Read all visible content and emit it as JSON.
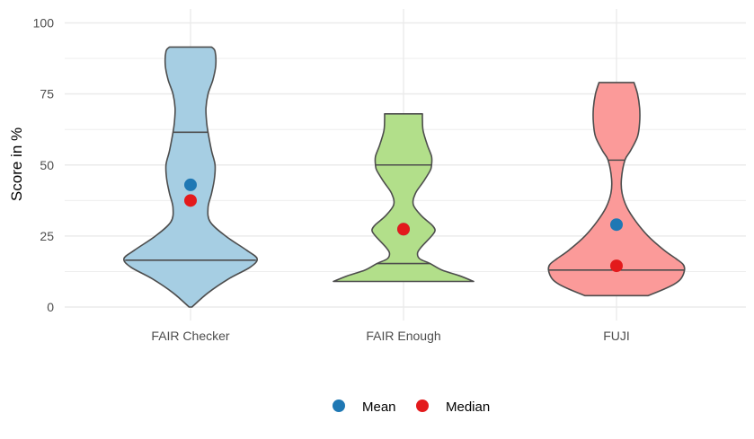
{
  "chart_data": {
    "type": "violin",
    "title": "",
    "xlabel": "",
    "ylabel": "Score in %",
    "ylim": [
      0,
      100
    ],
    "yticks": [
      0,
      25,
      50,
      75,
      100
    ],
    "grid": true,
    "legend_position": "bottom",
    "categories": [
      "FAIR Checker",
      "FAIR Enough",
      "FUJI"
    ],
    "colors": {
      "FAIR Checker": "#a6cee3",
      "FAIR Enough": "#b2df8a",
      "FUJI": "#fb9a99",
      "outline": "#4d4d4d",
      "grid": "#ebebeb"
    },
    "violins": [
      {
        "category": "FAIR Checker",
        "min": 0,
        "max": 91.5,
        "quantile_lines": [
          16.5,
          61.5
        ],
        "mean": 43,
        "median": 37.5,
        "density_profile": [
          [
            0,
            0.02
          ],
          [
            5,
            0.25
          ],
          [
            10,
            0.55
          ],
          [
            14,
            0.85
          ],
          [
            17,
            0.95
          ],
          [
            20,
            0.8
          ],
          [
            25,
            0.5
          ],
          [
            30,
            0.28
          ],
          [
            35,
            0.25
          ],
          [
            40,
            0.3
          ],
          [
            45,
            0.34
          ],
          [
            50,
            0.35
          ],
          [
            55,
            0.3
          ],
          [
            61.5,
            0.25
          ],
          [
            65,
            0.23
          ],
          [
            70,
            0.22
          ],
          [
            75,
            0.25
          ],
          [
            80,
            0.32
          ],
          [
            85,
            0.36
          ],
          [
            90,
            0.35
          ],
          [
            91.5,
            0.3
          ]
        ]
      },
      {
        "category": "FAIR Enough",
        "min": 9,
        "max": 68,
        "quantile_lines": [
          15.3,
          50
        ],
        "mean": 27.4,
        "median": 27.4,
        "density_profile": [
          [
            9,
            1.0
          ],
          [
            11,
            0.8
          ],
          [
            13,
            0.55
          ],
          [
            15.3,
            0.38
          ],
          [
            17,
            0.23
          ],
          [
            19,
            0.2
          ],
          [
            21,
            0.25
          ],
          [
            25,
            0.4
          ],
          [
            27,
            0.45
          ],
          [
            29,
            0.4
          ],
          [
            32,
            0.26
          ],
          [
            36,
            0.14
          ],
          [
            40,
            0.17
          ],
          [
            44,
            0.28
          ],
          [
            48,
            0.38
          ],
          [
            50,
            0.4
          ],
          [
            53,
            0.4
          ],
          [
            57,
            0.34
          ],
          [
            62,
            0.28
          ],
          [
            66,
            0.27
          ],
          [
            68,
            0.27
          ]
        ]
      },
      {
        "category": "FUJI",
        "min": 4,
        "max": 79,
        "quantile_lines": [
          13,
          51.7
        ],
        "mean": 29,
        "median": 14.5,
        "density_profile": [
          [
            4,
            0.45
          ],
          [
            6,
            0.65
          ],
          [
            8,
            0.82
          ],
          [
            10,
            0.92
          ],
          [
            13,
            0.97
          ],
          [
            15,
            0.95
          ],
          [
            17,
            0.85
          ],
          [
            20,
            0.68
          ],
          [
            25,
            0.45
          ],
          [
            30,
            0.28
          ],
          [
            35,
            0.15
          ],
          [
            40,
            0.08
          ],
          [
            45,
            0.07
          ],
          [
            51.7,
            0.12
          ],
          [
            55,
            0.2
          ],
          [
            60,
            0.3
          ],
          [
            65,
            0.33
          ],
          [
            70,
            0.33
          ],
          [
            75,
            0.3
          ],
          [
            79,
            0.25
          ]
        ]
      }
    ],
    "legend": [
      {
        "label": "Mean",
        "color": "#1f78b4"
      },
      {
        "label": "Median",
        "color": "#e31a1c"
      }
    ]
  }
}
